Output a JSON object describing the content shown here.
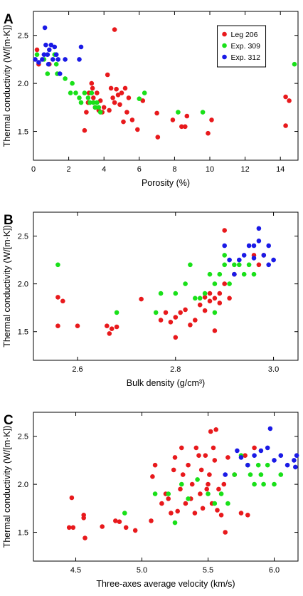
{
  "colors": {
    "Leg 206": "#e8191c",
    "Exp. 309": "#19e019",
    "Exp. 312": "#1a1ae6"
  },
  "legend": [
    "Leg 206",
    "Exp. 309",
    "Exp. 312"
  ],
  "chart_data": [
    {
      "panel": "A",
      "type": "scatter",
      "xlabel": "Porosity (%)",
      "ylabel": "Thermal conductivity (W/[m·K])",
      "xlim": [
        0,
        15
      ],
      "ylim": [
        1.2,
        2.75
      ],
      "xticks": [
        0,
        2,
        4,
        6,
        8,
        10,
        12,
        14
      ],
      "yticks": [
        1.5,
        2.0,
        2.5
      ],
      "legend_position": "top-right",
      "series": [
        {
          "name": "Leg 206",
          "points": [
            [
              0.2,
              2.35
            ],
            [
              0.3,
              2.2
            ],
            [
              0.9,
              2.2
            ],
            [
              2.9,
              1.51
            ],
            [
              3.0,
              1.7
            ],
            [
              3.1,
              1.8
            ],
            [
              3.15,
              1.9
            ],
            [
              3.3,
              2.0
            ],
            [
              3.35,
              1.95
            ],
            [
              3.4,
              1.85
            ],
            [
              3.5,
              1.75
            ],
            [
              3.6,
              1.9
            ],
            [
              3.7,
              1.72
            ],
            [
              3.8,
              1.82
            ],
            [
              3.9,
              1.7
            ],
            [
              4.0,
              1.75
            ],
            [
              4.2,
              2.09
            ],
            [
              4.3,
              1.72
            ],
            [
              4.4,
              1.95
            ],
            [
              4.5,
              1.85
            ],
            [
              4.6,
              2.56
            ],
            [
              4.6,
              1.8
            ],
            [
              4.7,
              1.94
            ],
            [
              4.8,
              1.88
            ],
            [
              4.9,
              1.78
            ],
            [
              5.0,
              1.9
            ],
            [
              5.1,
              1.6
            ],
            [
              5.2,
              1.95
            ],
            [
              5.3,
              1.7
            ],
            [
              5.4,
              1.85
            ],
            [
              5.6,
              1.62
            ],
            [
              5.9,
              1.52
            ],
            [
              6.2,
              1.82
            ],
            [
              7.0,
              1.69
            ],
            [
              7.05,
              1.44
            ],
            [
              7.9,
              1.62
            ],
            [
              8.4,
              1.55
            ],
            [
              8.6,
              1.55
            ],
            [
              8.7,
              1.66
            ],
            [
              9.9,
              1.48
            ],
            [
              10.1,
              1.62
            ],
            [
              14.3,
              1.86
            ],
            [
              14.3,
              1.56
            ],
            [
              14.5,
              1.82
            ]
          ]
        },
        {
          "name": "Exp. 309",
          "points": [
            [
              0.2,
              2.3
            ],
            [
              0.6,
              2.25
            ],
            [
              0.8,
              2.1
            ],
            [
              1.2,
              2.3
            ],
            [
              1.3,
              2.2
            ],
            [
              1.35,
              2.1
            ],
            [
              1.8,
              2.05
            ],
            [
              2.1,
              1.9
            ],
            [
              2.2,
              2.0
            ],
            [
              2.4,
              1.9
            ],
            [
              2.6,
              1.85
            ],
            [
              2.7,
              1.8
            ],
            [
              2.9,
              1.9
            ],
            [
              3.1,
              1.85
            ],
            [
              3.2,
              1.8
            ],
            [
              3.3,
              1.9
            ],
            [
              3.4,
              1.8
            ],
            [
              3.5,
              1.75
            ],
            [
              3.6,
              1.8
            ],
            [
              3.7,
              1.75
            ],
            [
              3.8,
              1.7
            ],
            [
              6.0,
              1.84
            ],
            [
              6.3,
              1.9
            ],
            [
              8.2,
              1.7
            ],
            [
              9.6,
              1.7
            ],
            [
              14.8,
              2.2
            ]
          ]
        },
        {
          "name": "Exp. 312",
          "points": [
            [
              0.1,
              2.25
            ],
            [
              0.3,
              2.22
            ],
            [
              0.5,
              2.25
            ],
            [
              0.6,
              2.3
            ],
            [
              0.65,
              2.58
            ],
            [
              0.7,
              2.4
            ],
            [
              0.8,
              2.3
            ],
            [
              0.85,
              2.2
            ],
            [
              0.9,
              2.35
            ],
            [
              1.0,
              2.4
            ],
            [
              1.1,
              2.25
            ],
            [
              1.2,
              2.38
            ],
            [
              1.3,
              2.3
            ],
            [
              1.4,
              2.25
            ],
            [
              1.5,
              2.1
            ],
            [
              1.8,
              2.25
            ],
            [
              2.6,
              2.25
            ],
            [
              2.7,
              2.38
            ]
          ]
        }
      ]
    },
    {
      "panel": "B",
      "type": "scatter",
      "xlabel": "Bulk density (g/cm³)",
      "ylabel": "Thermal conductivity (W/[m·K])",
      "xlim": [
        2.51,
        3.05
      ],
      "ylim": [
        1.2,
        2.75
      ],
      "xticks": [
        2.6,
        2.8,
        3.0
      ],
      "yticks": [
        1.5,
        2.0,
        2.5
      ],
      "series": [
        {
          "name": "Leg 206",
          "points": [
            [
              2.56,
              1.86
            ],
            [
              2.56,
              1.56
            ],
            [
              2.57,
              1.82
            ],
            [
              2.6,
              1.56
            ],
            [
              2.66,
              1.56
            ],
            [
              2.665,
              1.48
            ],
            [
              2.67,
              1.53
            ],
            [
              2.68,
              1.55
            ],
            [
              2.73,
              1.84
            ],
            [
              2.77,
              1.62
            ],
            [
              2.78,
              1.7
            ],
            [
              2.79,
              1.6
            ],
            [
              2.8,
              1.44
            ],
            [
              2.8,
              1.65
            ],
            [
              2.81,
              1.7
            ],
            [
              2.82,
              1.73
            ],
            [
              2.83,
              1.57
            ],
            [
              2.84,
              1.62
            ],
            [
              2.85,
              1.78
            ],
            [
              2.86,
              1.72
            ],
            [
              2.86,
              1.86
            ],
            [
              2.87,
              1.82
            ],
            [
              2.87,
              1.9
            ],
            [
              2.88,
              1.85
            ],
            [
              2.89,
              1.9
            ],
            [
              2.89,
              1.8
            ],
            [
              2.9,
              2.56
            ],
            [
              2.9,
              2.0
            ],
            [
              2.91,
              1.85
            ],
            [
              2.88,
              1.51
            ],
            [
              2.92,
              2.1
            ],
            [
              2.96,
              2.3
            ],
            [
              2.97,
              2.2
            ],
            [
              2.98,
              2.3
            ]
          ]
        },
        {
          "name": "Exp. 309",
          "points": [
            [
              2.56,
              2.2
            ],
            [
              2.68,
              1.7
            ],
            [
              2.76,
              1.7
            ],
            [
              2.77,
              1.9
            ],
            [
              2.8,
              1.9
            ],
            [
              2.82,
              2.0
            ],
            [
              2.83,
              2.2
            ],
            [
              2.84,
              1.85
            ],
            [
              2.85,
              1.85
            ],
            [
              2.86,
              1.9
            ],
            [
              2.87,
              2.1
            ],
            [
              2.88,
              2.0
            ],
            [
              2.88,
              1.7
            ],
            [
              2.89,
              2.1
            ],
            [
              2.9,
              2.2
            ],
            [
              2.9,
              2.3
            ],
            [
              2.91,
              2.0
            ],
            [
              2.92,
              2.2
            ],
            [
              2.93,
              2.2
            ],
            [
              2.94,
              2.1
            ],
            [
              2.95,
              2.2
            ],
            [
              2.96,
              2.1
            ]
          ]
        },
        {
          "name": "Exp. 312",
          "points": [
            [
              2.9,
              2.4
            ],
            [
              2.91,
              2.25
            ],
            [
              2.92,
              2.1
            ],
            [
              2.93,
              2.25
            ],
            [
              2.94,
              2.3
            ],
            [
              2.95,
              2.4
            ],
            [
              2.96,
              2.4
            ],
            [
              2.97,
              2.58
            ],
            [
              2.97,
              2.45
            ],
            [
              2.98,
              2.3
            ],
            [
              2.99,
              2.2
            ],
            [
              2.99,
              2.4
            ],
            [
              3.0,
              2.25
            ],
            [
              2.96,
              2.27
            ]
          ]
        }
      ]
    },
    {
      "panel": "C",
      "type": "scatter",
      "xlabel": "Three-axes average velocity (km/s)",
      "ylabel": "Thermal conductivity (W/[m·K])",
      "xlim": [
        4.18,
        6.18
      ],
      "ylim": [
        1.2,
        2.75
      ],
      "xticks": [
        4.5,
        5.0,
        5.5,
        6.0
      ],
      "yticks": [
        1.5,
        2.0,
        2.5
      ],
      "series": [
        {
          "name": "Leg 206",
          "points": [
            [
              4.45,
              1.55
            ],
            [
              4.47,
              1.86
            ],
            [
              4.48,
              1.55
            ],
            [
              4.56,
              1.68
            ],
            [
              4.56,
              1.65
            ],
            [
              4.57,
              1.44
            ],
            [
              4.7,
              1.56
            ],
            [
              4.8,
              1.62
            ],
            [
              4.83,
              1.61
            ],
            [
              4.88,
              1.55
            ],
            [
              4.95,
              1.52
            ],
            [
              5.07,
              1.62
            ],
            [
              5.08,
              2.08
            ],
            [
              5.1,
              2.2
            ],
            [
              5.15,
              1.8
            ],
            [
              5.18,
              1.9
            ],
            [
              5.2,
              1.85
            ],
            [
              5.22,
              1.7
            ],
            [
              5.24,
              2.15
            ],
            [
              5.25,
              2.28
            ],
            [
              5.27,
              1.72
            ],
            [
              5.29,
              1.95
            ],
            [
              5.3,
              2.38
            ],
            [
              5.31,
              2.1
            ],
            [
              5.33,
              1.8
            ],
            [
              5.35,
              2.2
            ],
            [
              5.37,
              1.85
            ],
            [
              5.38,
              2.0
            ],
            [
              5.4,
              1.7
            ],
            [
              5.41,
              2.38
            ],
            [
              5.43,
              2.3
            ],
            [
              5.44,
              1.9
            ],
            [
              5.45,
              2.15
            ],
            [
              5.46,
              1.75
            ],
            [
              5.48,
              2.3
            ],
            [
              5.49,
              1.95
            ],
            [
              5.5,
              2.0
            ],
            [
              5.51,
              2.1
            ],
            [
              5.52,
              2.55
            ],
            [
              5.53,
              1.8
            ],
            [
              5.54,
              2.38
            ],
            [
              5.55,
              2.25
            ],
            [
              5.56,
              2.57
            ],
            [
              5.57,
              1.73
            ],
            [
              5.58,
              1.95
            ],
            [
              5.6,
              1.68
            ],
            [
              5.62,
              2.0
            ],
            [
              5.63,
              1.5
            ],
            [
              5.65,
              2.28
            ],
            [
              5.7,
              2.1
            ],
            [
              5.75,
              1.7
            ],
            [
              5.78,
              2.3
            ],
            [
              5.8,
              1.68
            ],
            [
              5.85,
              2.38
            ]
          ]
        },
        {
          "name": "Exp. 309",
          "points": [
            [
              4.87,
              1.7
            ],
            [
              5.1,
              1.9
            ],
            [
              5.2,
              1.9
            ],
            [
              5.25,
              1.6
            ],
            [
              5.3,
              2.0
            ],
            [
              5.35,
              1.85
            ],
            [
              5.42,
              2.05
            ],
            [
              5.5,
              1.9
            ],
            [
              5.55,
              1.8
            ],
            [
              5.6,
              1.9
            ],
            [
              5.65,
              1.8
            ],
            [
              5.7,
              2.1
            ],
            [
              5.75,
              2.3
            ],
            [
              5.8,
              2.2
            ],
            [
              5.82,
              2.1
            ],
            [
              5.85,
              2.0
            ],
            [
              5.88,
              2.2
            ],
            [
              5.9,
              2.1
            ],
            [
              5.92,
              2.0
            ],
            [
              5.95,
              2.2
            ],
            [
              6.0,
              2.0
            ],
            [
              6.05,
              2.1
            ]
          ]
        },
        {
          "name": "Exp. 312",
          "points": [
            [
              5.63,
              2.1
            ],
            [
              5.72,
              2.35
            ],
            [
              5.75,
              2.28
            ],
            [
              5.8,
              2.2
            ],
            [
              5.85,
              2.3
            ],
            [
              5.9,
              2.35
            ],
            [
              5.95,
              2.38
            ],
            [
              5.97,
              2.58
            ],
            [
              6.0,
              2.25
            ],
            [
              6.05,
              2.3
            ],
            [
              6.1,
              2.2
            ],
            [
              6.15,
              2.25
            ],
            [
              6.16,
              2.18
            ],
            [
              6.17,
              2.3
            ]
          ]
        }
      ]
    }
  ]
}
